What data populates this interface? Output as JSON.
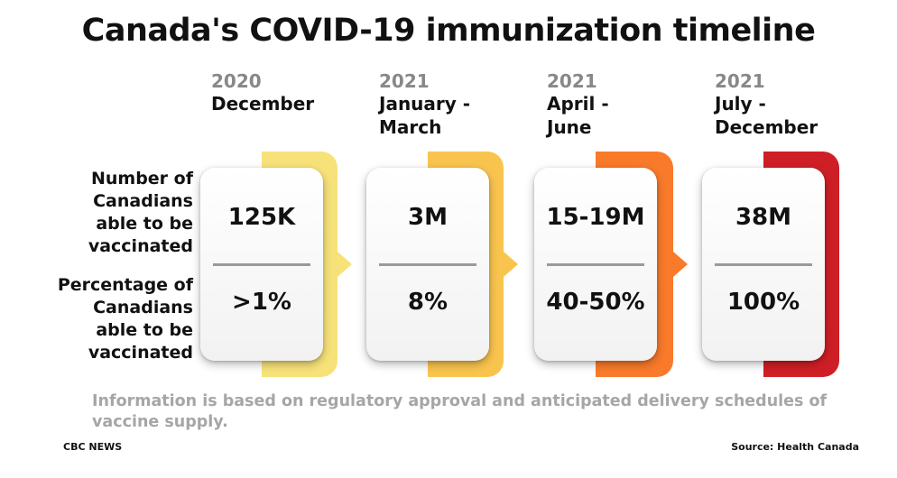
{
  "title": "Canada's COVID-19 immunization timeline",
  "row_labels": {
    "count": "Number of\nCanadians\nable to be\nvaccinated",
    "percent": "Percentage of\nCanadians\nable to be\nvaccinated"
  },
  "colors": {
    "band_1": "#f7e27a",
    "band_2": "#f9c44e",
    "band_3": "#f97a2a",
    "band_4": "#cf1f26"
  },
  "chart_data": {
    "type": "table",
    "title": "Canada's COVID-19 immunization timeline",
    "columns": [
      {
        "year": "2020",
        "period": "December",
        "count_label": "125K",
        "percent_label": ">1%"
      },
      {
        "year": "2021",
        "period": "January -\nMarch",
        "count_label": "3M",
        "percent_label": "8%"
      },
      {
        "year": "2021",
        "period": "April -\nJune",
        "count_label": "15-19M",
        "percent_label": "40-50%"
      },
      {
        "year": "2021",
        "period": "July -\nDecember",
        "count_label": "38M",
        "percent_label": "100%"
      }
    ],
    "rows": [
      "Number of Canadians able to be vaccinated",
      "Percentage of Canadians able to be vaccinated"
    ]
  },
  "note": "Information is based on regulatory approval and anticipated delivery schedules of vaccine supply.",
  "credit_left": "CBC NEWS",
  "credit_right": "Source: Health Canada"
}
